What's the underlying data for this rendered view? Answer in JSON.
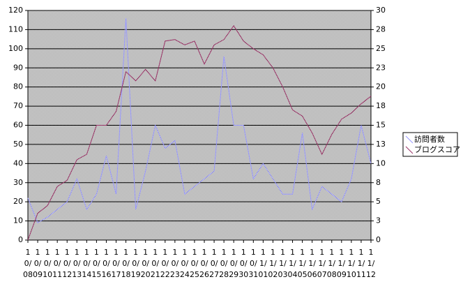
{
  "chart_data": {
    "type": "line",
    "categories": [
      "10/08",
      "10/09",
      "10/10",
      "10/11",
      "10/12",
      "10/13",
      "10/14",
      "10/15",
      "10/16",
      "10/17",
      "10/18",
      "10/19",
      "10/20",
      "10/21",
      "10/22",
      "10/23",
      "10/24",
      "10/25",
      "10/26",
      "10/27",
      "10/28",
      "10/29",
      "10/30",
      "10/31",
      "11/01",
      "11/02",
      "11/03",
      "11/04",
      "11/05",
      "11/06",
      "11/07",
      "11/08",
      "11/09",
      "11/10",
      "11/11",
      "11/12"
    ],
    "series": [
      {
        "name": "訪問者数",
        "color": "#9999ff",
        "values": [
          22,
          9,
          12,
          16,
          20,
          32,
          16,
          24,
          44,
          24,
          116,
          16,
          36,
          60,
          48,
          52,
          24,
          28,
          32,
          36,
          96,
          60,
          60,
          32,
          40,
          32,
          24,
          24,
          56,
          16,
          28,
          24,
          20,
          32,
          60,
          40
        ]
      },
      {
        "name": "ブログスコア",
        "color": "#993366",
        "axis": "y2",
        "values": [
          0,
          3.5,
          4.5,
          7,
          7.8,
          10.5,
          11.2,
          15,
          15,
          16.8,
          22,
          20.8,
          22.3,
          20.8,
          26,
          26.2,
          25.5,
          26,
          23,
          25.5,
          26.2,
          28,
          26,
          25,
          24.2,
          22.5,
          20,
          17,
          16.2,
          14,
          11.2,
          13.8,
          15.8,
          16.6,
          17.8,
          18.8
        ]
      }
    ],
    "ylim": [
      0,
      120
    ],
    "yticks": [
      0,
      10,
      20,
      30,
      40,
      50,
      60,
      70,
      80,
      90,
      100,
      110,
      120
    ],
    "y2lim": [
      0,
      30
    ],
    "y2ticks": [
      0,
      {
        "value": 2.5,
        "label": "3"
      },
      5,
      {
        "value": 7.5,
        "label": "8"
      },
      10,
      {
        "value": 12.5,
        "label": "13"
      },
      15,
      {
        "value": 17.5,
        "label": "18"
      },
      20,
      {
        "value": 22.5,
        "label": "23"
      },
      25,
      {
        "value": 27.5,
        "label": "28"
      },
      30
    ],
    "grid": true,
    "legend": "right"
  }
}
